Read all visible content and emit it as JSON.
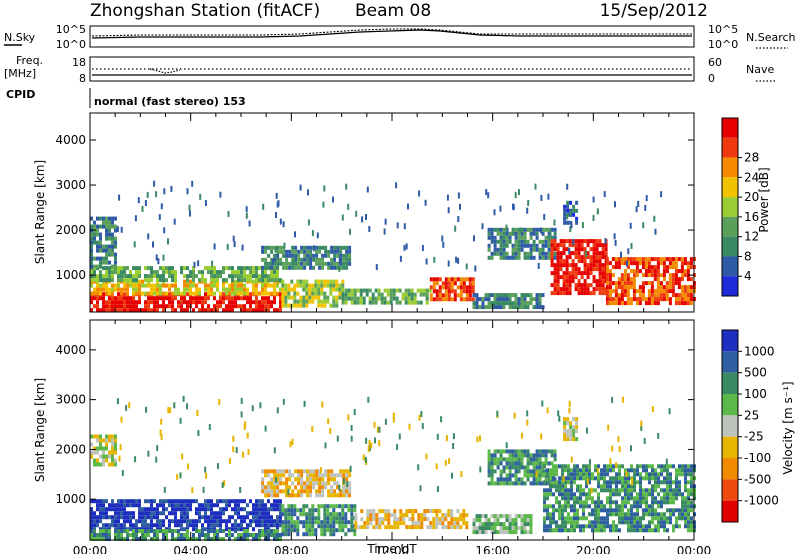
{
  "header": {
    "station": "Zhongshan Station (fitACF)",
    "beam": "Beam 08",
    "date": "15/Sep/2012"
  },
  "summary_panels": {
    "nsky_label": "N.Sky",
    "nsky_ticks": [
      "10^5",
      "10^0"
    ],
    "nsearch_label": "N.Search",
    "nsearch_ticks": [
      "10^5",
      "10^0"
    ],
    "freq_label": "Freq.",
    "freq_unit": "[MHz]",
    "freq_ticks": [
      "18",
      "8"
    ],
    "nave_label": "Nave",
    "nave_ticks": [
      "60",
      "0"
    ],
    "cpid_label": "CPID",
    "cpid_text": "normal (fast stereo) 153"
  },
  "colors": {
    "power_scale": [
      "#1e2bd8",
      "#2f5aa6",
      "#3a8a63",
      "#5aa05a",
      "#9acd32",
      "#f2c200",
      "#f58a00",
      "#ef3a10",
      "#e60000"
    ],
    "velocity_scale": [
      "#1e2fbf",
      "#2f5fa0",
      "#3a8a63",
      "#5cb84a",
      "#bfc3bd",
      "#e7b400",
      "#f08b00",
      "#ef4a10",
      "#e00000"
    ]
  },
  "chart_data": [
    {
      "type": "heatmap",
      "name": "power",
      "ylabel": "Slant Range [km]",
      "yticks": [
        1000,
        2000,
        3000,
        4000
      ],
      "ylim": [
        180,
        4600
      ],
      "xlim": [
        0,
        24
      ],
      "colorbar_label": "Power [dB]",
      "colorbar_ticks": [
        "4",
        "8",
        "12",
        "16",
        "20",
        "24",
        "28"
      ],
      "regions": [
        {
          "t0": 0.0,
          "t1": 7.6,
          "r0": 220,
          "r1": 620,
          "v": 8
        },
        {
          "t0": 0.0,
          "t1": 7.6,
          "r0": 620,
          "r1": 900,
          "v": 5
        },
        {
          "t0": 0.0,
          "t1": 7.6,
          "r0": 900,
          "r1": 1200,
          "v": 3
        },
        {
          "t0": 0.0,
          "t1": 1.0,
          "r0": 1200,
          "r1": 2300,
          "v": 2
        },
        {
          "t0": 7.6,
          "t1": 10.0,
          "r0": 300,
          "r1": 900,
          "v": 4
        },
        {
          "t0": 10.0,
          "t1": 13.5,
          "r0": 350,
          "r1": 700,
          "v": 3
        },
        {
          "t0": 13.5,
          "t1": 15.2,
          "r0": 500,
          "r1": 950,
          "v": 7
        },
        {
          "t0": 15.2,
          "t1": 18.0,
          "r0": 300,
          "r1": 600,
          "v": 2
        },
        {
          "t0": 6.8,
          "t1": 10.3,
          "r0": 1150,
          "r1": 1650,
          "v": 2
        },
        {
          "t0": 15.8,
          "t1": 18.5,
          "r0": 1350,
          "r1": 2050,
          "v": 2
        },
        {
          "t0": 18.3,
          "t1": 20.5,
          "r0": 600,
          "r1": 1800,
          "v": 8
        },
        {
          "t0": 20.5,
          "t1": 24.0,
          "r0": 400,
          "r1": 1400,
          "v": 7
        },
        {
          "t0": 18.8,
          "t1": 19.3,
          "r0": 2200,
          "r1": 2650,
          "v": 1
        }
      ]
    },
    {
      "type": "heatmap",
      "name": "velocity",
      "ylabel": "Slant Range [km]",
      "yticks": [
        1000,
        2000,
        3000,
        4000
      ],
      "ylim": [
        180,
        4600
      ],
      "xlim": [
        0,
        24
      ],
      "xlabel": "Time UT",
      "xticks": [
        "00:00",
        "04:00",
        "08:00",
        "12:00",
        "16:00",
        "20:00",
        "00:00"
      ],
      "colorbar_label": "Velocity [m s⁻¹]",
      "colorbar_ticks": [
        "1000",
        "500",
        "100",
        "25",
        "-25",
        "-100",
        "-500",
        "-1000"
      ],
      "regions": [
        {
          "t0": 0.0,
          "t1": 7.6,
          "r0": 400,
          "r1": 1000,
          "v": 0
        },
        {
          "t0": 0.0,
          "t1": 7.6,
          "r0": 220,
          "r1": 400,
          "v": 2
        },
        {
          "t0": 0.0,
          "t1": 1.0,
          "r0": 1700,
          "r1": 2300,
          "v": 4
        },
        {
          "t0": 7.6,
          "t1": 10.5,
          "r0": 300,
          "r1": 900,
          "v": 2
        },
        {
          "t0": 10.5,
          "t1": 15.0,
          "r0": 400,
          "r1": 800,
          "v": 5
        },
        {
          "t0": 6.8,
          "t1": 10.3,
          "r0": 1100,
          "r1": 1600,
          "v": 5
        },
        {
          "t0": 15.2,
          "t1": 17.5,
          "r0": 300,
          "r1": 700,
          "v": 3
        },
        {
          "t0": 15.8,
          "t1": 18.5,
          "r0": 1300,
          "r1": 2000,
          "v": 2
        },
        {
          "t0": 18.0,
          "t1": 24.0,
          "r0": 400,
          "r1": 1700,
          "v": 2
        },
        {
          "t0": 18.8,
          "t1": 19.3,
          "r0": 2200,
          "r1": 2650,
          "v": 4
        }
      ]
    }
  ]
}
